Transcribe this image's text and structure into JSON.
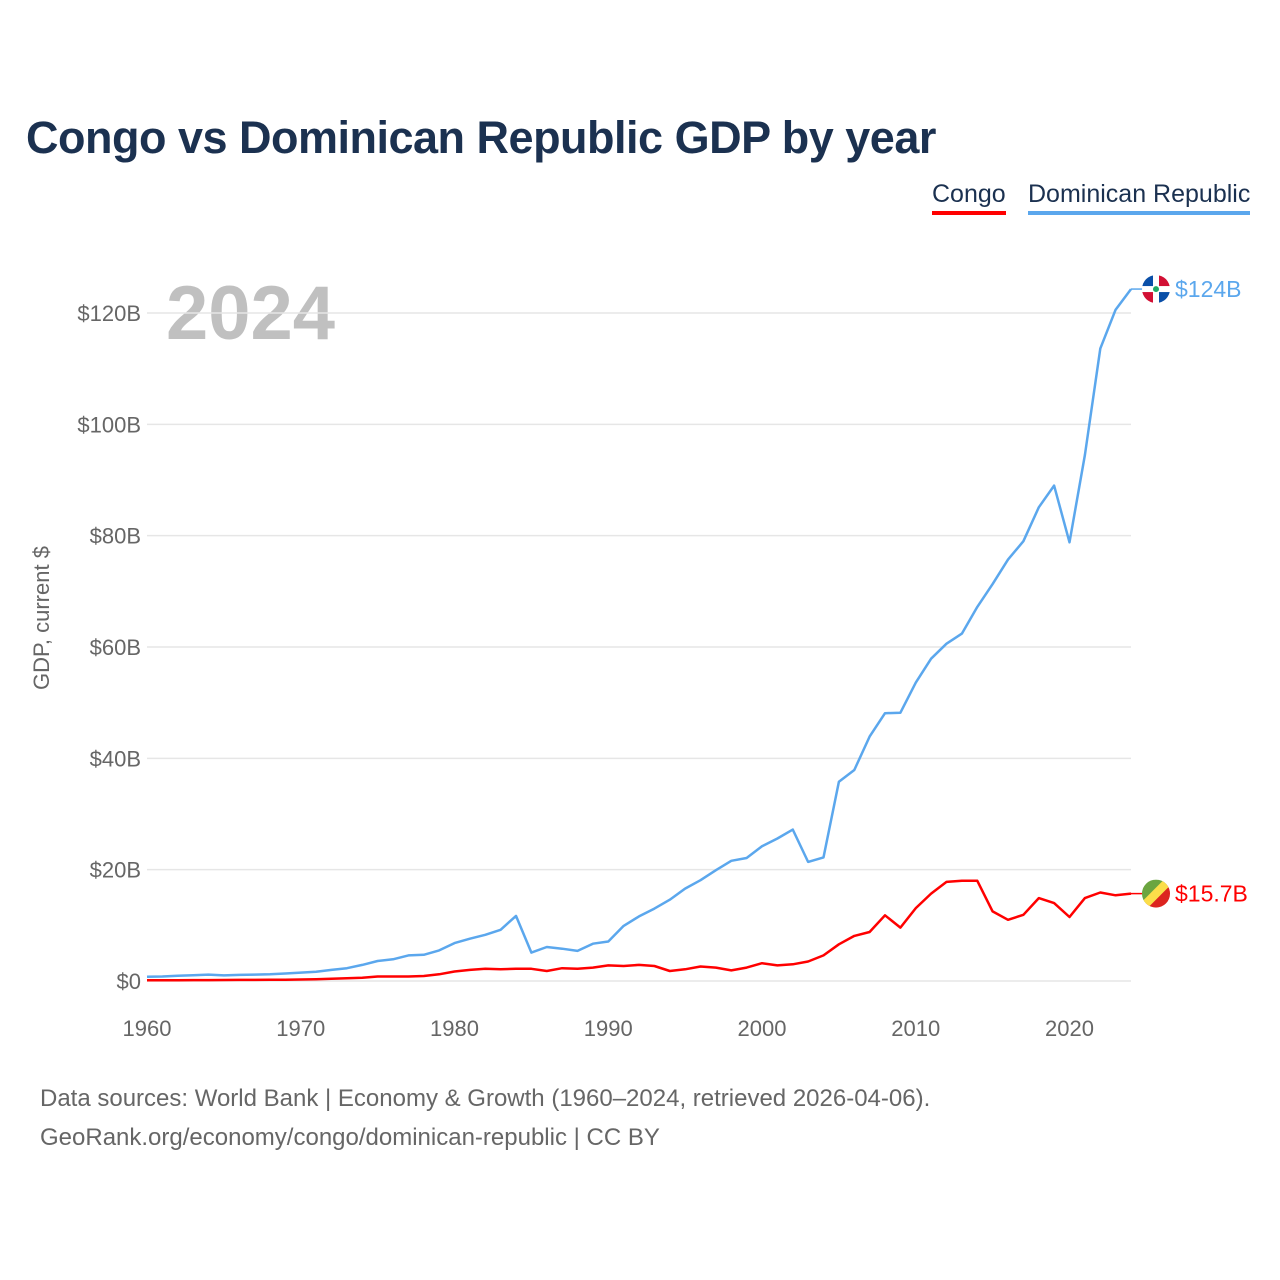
{
  "title": "Congo vs Dominican Republic GDP by year",
  "legend": [
    "Congo",
    "Dominican Republic"
  ],
  "year_label": "2024",
  "footer": {
    "line1": "Data sources: World Bank | Economy & Growth (1960–2024, retrieved 2026-04-06).",
    "line2": "GeoRank.org/economy/congo/dominican-republic | CC BY"
  },
  "chart_data": {
    "type": "line",
    "title": "Congo vs Dominican Republic GDP by year",
    "xlabel": "",
    "ylabel": "GDP, current $",
    "xlim": [
      1960,
      2024
    ],
    "ylim": [
      0,
      130
    ],
    "grid": true,
    "legend_position": "top-right",
    "x_ticks": [
      1960,
      1970,
      1980,
      1990,
      2000,
      2010,
      2020
    ],
    "x_tick_labels": [
      "1960",
      "1970",
      "1980",
      "1990",
      "2000",
      "2010",
      "2020"
    ],
    "y_ticks": [
      0,
      20,
      40,
      60,
      80,
      100,
      120
    ],
    "y_tick_labels": [
      "$0",
      "$20B",
      "$40B",
      "$60B",
      "$80B",
      "$100B",
      "$120B"
    ],
    "x_start": 1960,
    "series": [
      {
        "name": "Congo",
        "color": "#ff0000",
        "end_label": "$15.7B",
        "flag": "congo-flag",
        "values": [
          0.13,
          0.14,
          0.15,
          0.16,
          0.17,
          0.18,
          0.19,
          0.2,
          0.22,
          0.24,
          0.27,
          0.3,
          0.4,
          0.5,
          0.6,
          0.8,
          0.8,
          0.8,
          0.9,
          1.2,
          1.7,
          2.0,
          2.2,
          2.1,
          2.2,
          2.2,
          1.8,
          2.3,
          2.2,
          2.4,
          2.8,
          2.7,
          2.9,
          2.7,
          1.8,
          2.1,
          2.6,
          2.4,
          1.9,
          2.4,
          3.2,
          2.8,
          3.0,
          3.5,
          4.6,
          6.6,
          8.1,
          8.8,
          11.8,
          9.6,
          13.1,
          15.7,
          17.8,
          18.0,
          18.0,
          12.5,
          11.0,
          11.9,
          14.9,
          14.0,
          11.5,
          14.9,
          15.9,
          15.4,
          15.7
        ]
      },
      {
        "name": "Dominican Republic",
        "color": "#5ba7ed",
        "end_label": "$124B",
        "flag": "dominican-republic-flag",
        "values": [
          0.75,
          0.8,
          0.95,
          1.05,
          1.15,
          1.0,
          1.1,
          1.15,
          1.2,
          1.35,
          1.5,
          1.65,
          2.0,
          2.3,
          2.9,
          3.6,
          3.9,
          4.6,
          4.7,
          5.5,
          6.8,
          7.6,
          8.3,
          9.2,
          11.7,
          5.1,
          6.1,
          5.8,
          5.4,
          6.7,
          7.1,
          9.9,
          11.6,
          13.0,
          14.6,
          16.6,
          18.1,
          19.9,
          21.6,
          22.1,
          24.2,
          25.6,
          27.2,
          21.4,
          22.2,
          35.8,
          37.9,
          43.9,
          48.1,
          48.2,
          53.6,
          57.9,
          60.6,
          62.4,
          67.2,
          71.3,
          75.7,
          79.0,
          85.1,
          89.0,
          78.8,
          94.5,
          113.6,
          120.6,
          124.3
        ]
      }
    ]
  }
}
